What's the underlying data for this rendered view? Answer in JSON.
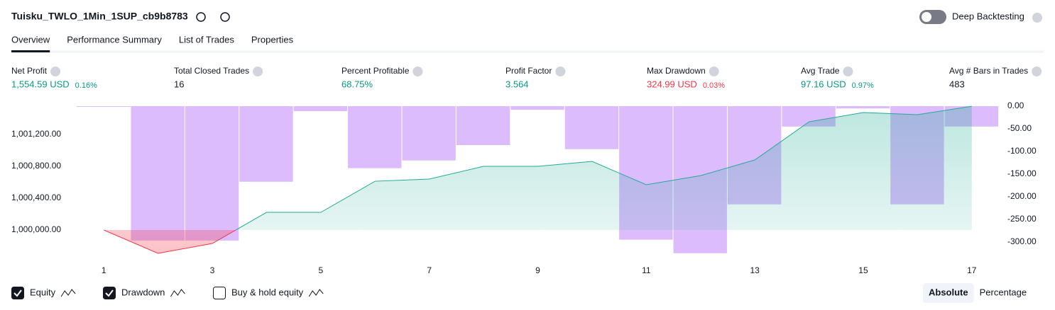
{
  "header": {
    "title": "Tuisku_TWLO_1Min_1SUP_cb9b8783",
    "toggle": "Deep Backtesting"
  },
  "tabs": {
    "items": [
      "Overview",
      "Performance Summary",
      "List of Trades",
      "Properties"
    ],
    "active": 0
  },
  "metrics": [
    {
      "label": "Net Profit",
      "value": "1,554.59 USD",
      "pct": "0.16%",
      "color": "#089981"
    },
    {
      "label": "Total Closed Trades",
      "value": "16",
      "color": "#131722"
    },
    {
      "label": "Percent Profitable",
      "value": "68.75%",
      "color": "#089981"
    },
    {
      "label": "Profit Factor",
      "value": "3.564",
      "color": "#089981"
    },
    {
      "label": "Max Drawdown",
      "value": "324.99 USD",
      "pct": "0.03%",
      "color": "#f23645"
    },
    {
      "label": "Avg Trade",
      "value": "97.16 USD",
      "pct": "0.97%",
      "color": "#089981"
    },
    {
      "label": "Avg # Bars in Trades",
      "value": "483",
      "color": "#131722"
    }
  ],
  "chart_data": {
    "type": "equity",
    "x": [
      1,
      2,
      3,
      4,
      5,
      6,
      7,
      8,
      9,
      10,
      11,
      12,
      13,
      14,
      15,
      16,
      17
    ],
    "series": [
      {
        "name": "Equity",
        "color": "#22ab94",
        "below_color": "#f23645",
        "axis": "y",
        "values": [
          1000000,
          999707,
          999831,
          1000222,
          1000222,
          1000613,
          1000640,
          1000800,
          1000800,
          1000862,
          1000569,
          1000684,
          1000880,
          1001360,
          1001476,
          1001449,
          1001554.59
        ]
      },
      {
        "name": "Drawdown",
        "color": "#d6b0fb",
        "axis": "y2",
        "values": [
          0,
          -297,
          -297,
          -167,
          -11,
          -137,
          -120,
          -86,
          -8,
          -95,
          -295,
          -324.99,
          -217,
          -45,
          -5,
          -217,
          -45
        ]
      }
    ],
    "xlim": [
      0.5,
      17.5
    ],
    "xticks": [
      1,
      3,
      5,
      7,
      9,
      11,
      13,
      15,
      17
    ],
    "ylim": [
      999680,
      1001556
    ],
    "yticks": [
      {
        "value": 1000000,
        "label": "1,000,000.00"
      },
      {
        "value": 1000400,
        "label": "1,000,400.00"
      },
      {
        "value": 1000800,
        "label": "1,000,800.00"
      },
      {
        "value": 1001200,
        "label": "1,001,200.00"
      }
    ],
    "y2lim": [
      -330,
      0
    ],
    "y2ticks": [
      {
        "value": 0,
        "label": "0.00"
      },
      {
        "value": -50,
        "label": "-50.00"
      },
      {
        "value": -100,
        "label": "-100.00"
      },
      {
        "value": -150,
        "label": "-150.00"
      },
      {
        "value": -200,
        "label": "-200.00"
      },
      {
        "value": -250,
        "label": "-250.00"
      },
      {
        "value": -300,
        "label": "-300.00"
      }
    ]
  },
  "legend": [
    {
      "label": "Equity",
      "checked": true
    },
    {
      "label": "Drawdown",
      "checked": true
    },
    {
      "label": "Buy & hold equity",
      "checked": false
    }
  ],
  "modes": {
    "items": [
      "Absolute",
      "Percentage"
    ],
    "active": 0
  }
}
